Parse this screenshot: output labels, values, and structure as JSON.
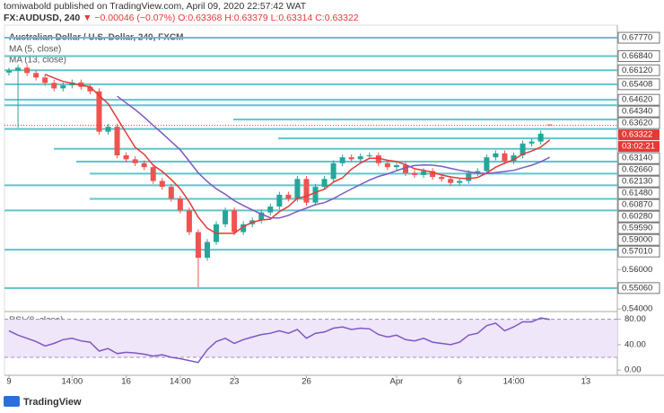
{
  "header": {
    "publisher": "tomiwabold published on TradingView.com, April 09, 2020 22:57:42 WAT",
    "symbol": "FX:AUDUSD, 240",
    "change": "▼ −0.00046 (−0.07%)",
    "ohlc": "O:0.63368 H:0.63379 L:0.63314 C:0.63322"
  },
  "footer": {
    "brand": "TradingView"
  },
  "chart_data": {
    "type": "candlestick",
    "title": "Australian Dollar / U.S. Dollar, 240, FXCM",
    "categories": [
      "9",
      null,
      null,
      null,
      null,
      null,
      null,
      "14:00",
      null,
      null,
      null,
      null,
      null,
      "16",
      null,
      null,
      null,
      null,
      null,
      "14:00",
      null,
      null,
      null,
      null,
      null,
      "23",
      null,
      null,
      null,
      null,
      null,
      null,
      null,
      "26",
      null,
      null,
      null,
      null,
      null,
      null,
      null,
      null,
      null,
      "Apr",
      null,
      null,
      null,
      null,
      null,
      null,
      "6",
      null,
      null,
      null,
      null,
      null,
      "14:00",
      null,
      null,
      null,
      null,
      null,
      null,
      null,
      "13",
      null,
      null,
      null
    ],
    "open": [
      0.66,
      0.661,
      0.6625,
      0.6598,
      0.6575,
      0.6548,
      0.652,
      0.6535,
      0.655,
      0.6528,
      0.6505,
      0.63,
      0.6325,
      0.618,
      0.616,
      0.614,
      0.612,
      0.605,
      0.602,
      0.596,
      0.59,
      0.579,
      0.566,
      0.574,
      0.583,
      0.59,
      0.579,
      0.583,
      0.585,
      0.589,
      0.592,
      0.598,
      0.596,
      0.606,
      0.594,
      0.602,
      0.606,
      0.614,
      0.617,
      0.616,
      0.6175,
      0.618,
      0.614,
      0.612,
      0.613,
      0.609,
      0.608,
      0.61,
      0.607,
      0.606,
      0.604,
      0.605,
      0.609,
      0.61,
      0.617,
      0.619,
      0.615,
      0.618,
      0.624,
      0.625,
      0.63368,
      null,
      null,
      null,
      null,
      null,
      null,
      null
    ],
    "high": [
      0.6625,
      0.664,
      0.664,
      0.6613,
      0.659,
      0.6563,
      0.655,
      0.6565,
      0.6565,
      0.6543,
      0.652,
      0.634,
      0.634,
      0.6195,
      0.6175,
      0.6155,
      0.6135,
      0.6065,
      0.6035,
      0.5975,
      0.5915,
      0.5805,
      0.5755,
      0.5845,
      0.5915,
      0.5915,
      0.5845,
      0.5865,
      0.5905,
      0.5935,
      0.5995,
      0.5995,
      0.6075,
      0.6075,
      0.6035,
      0.6075,
      0.6155,
      0.6185,
      0.6185,
      0.619,
      0.6195,
      0.6195,
      0.6155,
      0.6145,
      0.6145,
      0.6105,
      0.6115,
      0.6115,
      0.6085,
      0.6075,
      0.6065,
      0.6105,
      0.6115,
      0.6185,
      0.6205,
      0.6205,
      0.6195,
      0.6255,
      0.6265,
      0.6305,
      0.63379,
      null,
      null,
      null,
      null,
      null,
      null,
      null
    ],
    "low": [
      0.6585,
      0.632,
      0.6583,
      0.656,
      0.6533,
      0.6505,
      0.6505,
      0.652,
      0.6513,
      0.649,
      0.6285,
      0.6285,
      0.6165,
      0.6145,
      0.6125,
      0.6105,
      0.6035,
      0.6005,
      0.5945,
      0.5885,
      0.5775,
      0.551,
      0.5645,
      0.5725,
      0.5815,
      0.5775,
      0.5775,
      0.5815,
      0.5835,
      0.5875,
      0.5905,
      0.5945,
      0.5945,
      0.5925,
      0.5925,
      0.6005,
      0.6045,
      0.6125,
      0.6145,
      0.6145,
      0.616,
      0.6125,
      0.6105,
      0.6105,
      0.6075,
      0.6065,
      0.6065,
      0.6055,
      0.6045,
      0.6025,
      0.6025,
      0.6035,
      0.6075,
      0.6085,
      0.6155,
      0.6135,
      0.6135,
      0.6165,
      0.6225,
      0.6235,
      0.63314,
      null,
      null,
      null,
      null,
      null,
      null,
      null
    ],
    "close": [
      0.661,
      0.6625,
      0.6598,
      0.6575,
      0.6548,
      0.652,
      0.6535,
      0.655,
      0.6528,
      0.6505,
      0.63,
      0.6325,
      0.618,
      0.616,
      0.614,
      0.612,
      0.605,
      0.602,
      0.596,
      0.59,
      0.579,
      0.566,
      0.574,
      0.583,
      0.59,
      0.579,
      0.583,
      0.585,
      0.589,
      0.592,
      0.598,
      0.596,
      0.606,
      0.594,
      0.602,
      0.606,
      0.614,
      0.617,
      0.616,
      0.6175,
      0.618,
      0.614,
      0.612,
      0.613,
      0.609,
      0.608,
      0.61,
      0.607,
      0.606,
      0.604,
      0.605,
      0.609,
      0.61,
      0.617,
      0.619,
      0.615,
      0.618,
      0.624,
      0.625,
      0.629,
      0.63322,
      null,
      null,
      null,
      null,
      null,
      null,
      null
    ],
    "up_color": "#26a69a",
    "down_color": "#ef5350",
    "series": [
      {
        "name": "MA (5, close)",
        "color": "#e53935",
        "values": [
          null,
          null,
          null,
          null,
          0.6591,
          0.6573,
          0.6555,
          0.6546,
          0.6536,
          0.6528,
          0.6484,
          0.6442,
          0.6368,
          0.6294,
          0.6221,
          0.6185,
          0.613,
          0.6098,
          0.6058,
          0.601,
          0.5944,
          0.5866,
          0.581,
          0.5784,
          0.5784,
          0.5784,
          0.5818,
          0.584,
          0.5852,
          0.5856,
          0.5894,
          0.592,
          0.5962,
          0.5972,
          0.5992,
          0.6008,
          0.6044,
          0.6066,
          0.611,
          0.6141,
          0.6165,
          0.6165,
          0.6155,
          0.6149,
          0.6132,
          0.6112,
          0.6104,
          0.6094,
          0.608,
          0.607,
          0.6064,
          0.6062,
          0.6068,
          0.609,
          0.612,
          0.614,
          0.6158,
          0.6186,
          0.6202,
          0.6222,
          0.6258,
          null,
          null,
          null,
          null,
          null,
          null,
          null
        ]
      },
      {
        "name": "MA (13, close)",
        "color": "#7e57c2",
        "values": [
          null,
          null,
          null,
          null,
          null,
          null,
          null,
          null,
          null,
          null,
          null,
          null,
          0.648,
          0.6446,
          0.6412,
          0.6374,
          0.6332,
          0.6292,
          0.625,
          0.6208,
          0.615,
          0.6091,
          0.6047,
          0.601,
          0.5982,
          0.595,
          0.5925,
          0.5903,
          0.5882,
          0.5863,
          0.5862,
          0.5875,
          0.5895,
          0.5912,
          0.593,
          0.594,
          0.596,
          0.5986,
          0.6009,
          0.6032,
          0.6054,
          0.6073,
          0.6085,
          0.6102,
          0.6117,
          0.6128,
          0.6131,
          0.613,
          0.6124,
          0.6114,
          0.6104,
          0.6096,
          0.609,
          0.6088,
          0.6092,
          0.6098,
          0.6104,
          0.6117,
          0.613,
          0.6147,
          0.617,
          null,
          null,
          null,
          null,
          null,
          null,
          null
        ]
      }
    ],
    "ylim": [
      0.5396,
      0.6841
    ],
    "yticks": [
      {
        "value": 0.56,
        "label": "0.56000"
      },
      {
        "value": 0.54,
        "label": "0.54000"
      }
    ],
    "levels": [
      {
        "value": 0.6777,
        "label": "0.67770"
      },
      {
        "value": 0.6684,
        "label": "0.66840"
      },
      {
        "value": 0.6612,
        "label": "0.66120"
      },
      {
        "value": 0.65408,
        "label": "0.65408"
      },
      {
        "value": 0.6462,
        "label": "0.64620"
      },
      {
        "value": 0.6434,
        "label": "0.64340"
      },
      {
        "value": 0.6362,
        "label": "0.63620"
      },
      {
        "value": 0.6314,
        "label": "0.63140"
      },
      {
        "value": 0.6266,
        "label": "0.62660"
      },
      {
        "value": 0.6213,
        "label": "0.62130"
      },
      {
        "value": 0.6148,
        "label": "0.61480"
      },
      {
        "value": 0.6087,
        "label": "0.60870"
      },
      {
        "value": 0.6028,
        "label": "0.60280"
      },
      {
        "value": 0.5959,
        "label": "0.59590"
      },
      {
        "value": 0.59,
        "label": "0.59000"
      },
      {
        "value": 0.5701,
        "label": "0.57010"
      },
      {
        "value": 0.5506,
        "label": "0.55060"
      }
    ],
    "level_color": "#5ec5cc",
    "last": {
      "value": 0.63322,
      "label": "0.63322",
      "countdown": "03:02:21",
      "color": "#e53935"
    }
  },
  "rsi": {
    "name": "RSI (8, close)",
    "color": "#7e57c2",
    "band": [
      20,
      80
    ],
    "band_color": "#efe6fa",
    "values": [
      62,
      55,
      50,
      45,
      38,
      42,
      48,
      50,
      46,
      44,
      30,
      34,
      26,
      28,
      27,
      25,
      22,
      24,
      20,
      18,
      15,
      12,
      32,
      45,
      50,
      42,
      48,
      52,
      56,
      58,
      62,
      58,
      64,
      50,
      58,
      60,
      66,
      68,
      64,
      66,
      65,
      56,
      52,
      55,
      48,
      46,
      50,
      44,
      42,
      40,
      44,
      55,
      58,
      70,
      74,
      62,
      68,
      76,
      76,
      82,
      80,
      null,
      null,
      null,
      null,
      null,
      null,
      null
    ],
    "ylim": [
      -4,
      88
    ],
    "yticks": [
      {
        "value": 0,
        "label": "0.00"
      },
      {
        "value": 40,
        "label": "40.00"
      },
      {
        "value": 80,
        "label": "80.00"
      }
    ]
  }
}
